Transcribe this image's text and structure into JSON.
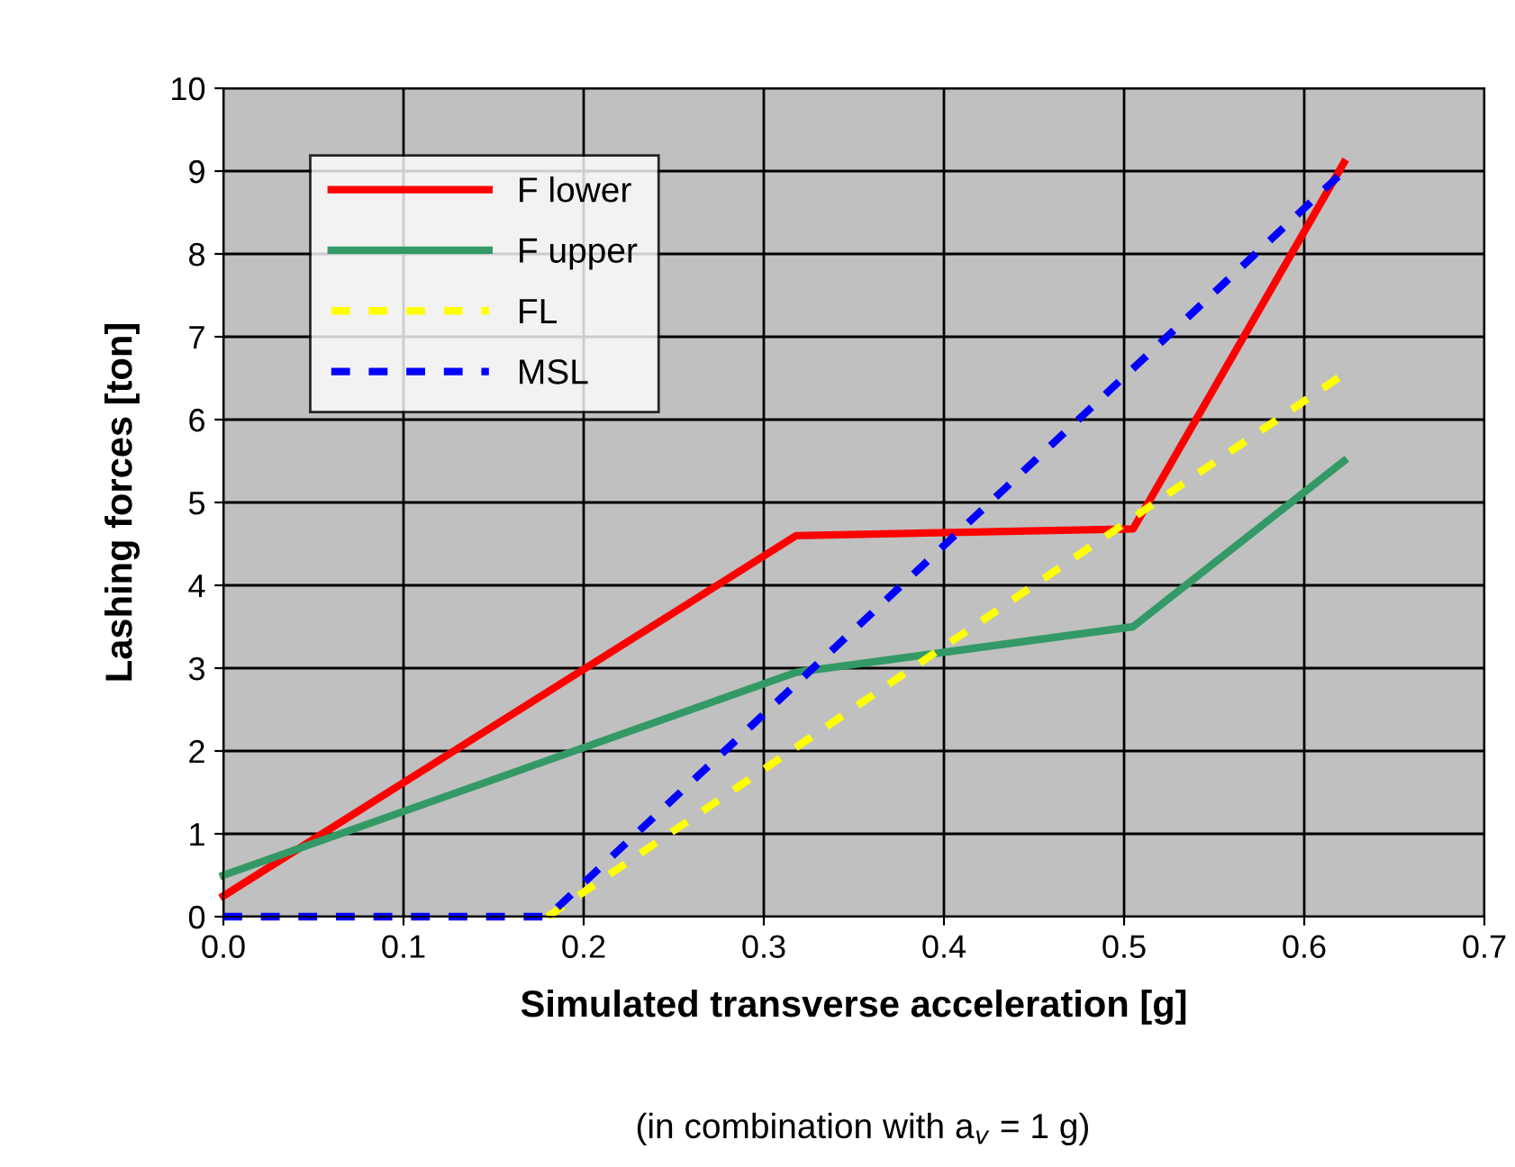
{
  "chart_data": {
    "type": "line",
    "xlabel": "Simulated transverse acceleration [g]",
    "ylabel": "Lashing forces [ton]",
    "annotations": [
      "(in combination with a$_{v}$ = 1 g)"
    ],
    "series": [
      {
        "name": "F lower",
        "color": "#ff0000",
        "line_style": "solid",
        "x": [
          0,
          0.318,
          0.505,
          0.622
        ],
        "values": [
          0.25,
          4.6,
          4.68,
          9.1
        ]
      },
      {
        "name": "F upper",
        "color": "#339966",
        "line_style": "solid",
        "x": [
          0,
          0.318,
          0.505,
          0.622
        ],
        "values": [
          0.5,
          2.95,
          3.5,
          5.5
        ]
      },
      {
        "name": "FL",
        "color": "#ffff00",
        "line_style": "dashed",
        "x": [
          0.18,
          0.622
        ],
        "values": [
          0,
          6.55
        ]
      },
      {
        "name": "MSL",
        "color": "#0000ff",
        "line_style": "dashed",
        "x": [
          0,
          0.18,
          0.622
        ],
        "values": [
          0,
          0,
          9.0
        ]
      }
    ],
    "xlim": [
      0,
      0.7
    ],
    "xticks": [
      {
        "value": 0,
        "label": "0.0"
      },
      0.1,
      0.2,
      0.3,
      0.4,
      0.5,
      0.6,
      0.7
    ],
    "ylim": [
      0,
      10
    ],
    "yticks": [
      0,
      1,
      2,
      3,
      4,
      5,
      6,
      7,
      8,
      9,
      10
    ],
    "grid": true,
    "legend": "top left",
    "marker": "none"
  }
}
